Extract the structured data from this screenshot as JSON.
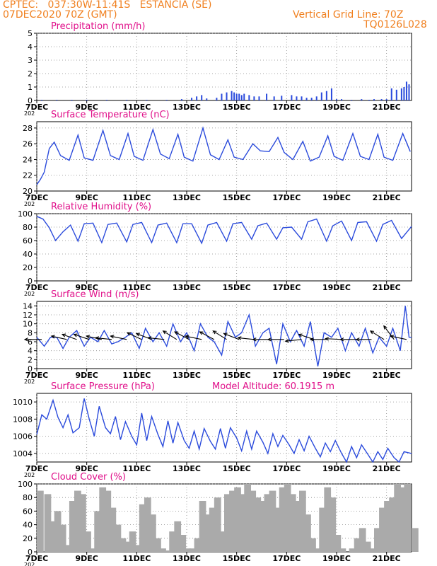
{
  "header": {
    "line1": "CPTEC:   037:30W-11:41S   ESTANCIA (SE)",
    "line2": "07DEC2020 70Z (GMT)",
    "grid_note": "Vertical Grid Line: 70Z",
    "code": "TQ0126L028",
    "model_altitude": "Model Altitude: 60.1915 m"
  },
  "colors": {
    "header": "#f08020",
    "title": "#e0108a",
    "series": "#2b4bdc",
    "cloud": "#aaaaaa",
    "grid": "#888888"
  },
  "x_axis": {
    "start": "7DEC",
    "end": "22DEC",
    "unit": "days",
    "tick_labels": [
      "7DEC",
      "9DEC",
      "11DEC",
      "13DEC",
      "15DEC",
      "17DEC",
      "19DEC",
      "21DEC"
    ],
    "tick_days": [
      7,
      9,
      11,
      13,
      15,
      17,
      19,
      21
    ],
    "year_hint": "202"
  },
  "chart_data": [
    {
      "id": "precip",
      "type": "bar",
      "title": "Precipitation (mm/h)",
      "ylim": [
        0,
        5
      ],
      "yticks": [
        0,
        1,
        2,
        3,
        4,
        5
      ],
      "day": [
        7.2,
        7.8,
        8.4,
        9.0,
        9.8,
        10.6,
        11.4,
        12.2,
        12.8,
        13.2,
        13.4,
        13.6,
        13.8,
        14.2,
        14.4,
        14.6,
        14.8,
        14.9,
        15.0,
        15.1,
        15.2,
        15.3,
        15.5,
        15.7,
        15.9,
        16.2,
        16.5,
        16.8,
        17.2,
        17.4,
        17.6,
        17.8,
        18.0,
        18.2,
        18.4,
        18.6,
        18.8,
        19.0,
        19.2,
        19.6,
        20.0,
        20.3,
        20.5,
        20.8,
        21.0,
        21.2,
        21.4,
        21.6,
        21.7,
        21.8,
        21.9
      ],
      "values": [
        0.05,
        0.05,
        0.05,
        0.05,
        0.05,
        0.05,
        0.05,
        0.05,
        0.1,
        0.2,
        0.3,
        0.4,
        0.15,
        0.2,
        0.5,
        0.6,
        0.7,
        0.6,
        0.5,
        0.5,
        0.4,
        0.5,
        0.4,
        0.3,
        0.3,
        0.5,
        0.3,
        0.35,
        0.4,
        0.3,
        0.3,
        0.2,
        0.2,
        0.3,
        0.6,
        0.7,
        0.9,
        0.1,
        0.1,
        0.05,
        0.1,
        0.05,
        0.1,
        0.1,
        0.1,
        0.9,
        0.8,
        0.9,
        1.0,
        1.4,
        1.2
      ]
    },
    {
      "id": "temp",
      "type": "line",
      "title": "Surface Temperature (nC)",
      "ylim": [
        20,
        28.8
      ],
      "yticks": [
        20,
        22,
        24,
        26,
        28
      ],
      "day": [
        7.0,
        7.15,
        7.3,
        7.5,
        7.7,
        7.95,
        8.3,
        8.65,
        8.9,
        9.25,
        9.65,
        9.95,
        10.3,
        10.65,
        10.9,
        11.25,
        11.65,
        11.95,
        12.3,
        12.65,
        12.9,
        13.25,
        13.65,
        13.95,
        14.3,
        14.65,
        14.9,
        15.25,
        15.65,
        15.95,
        16.3,
        16.65,
        16.9,
        17.25,
        17.65,
        17.95,
        18.3,
        18.65,
        18.9,
        19.25,
        19.65,
        19.95,
        20.3,
        20.65,
        20.9,
        21.25,
        21.65,
        21.95
      ],
      "values": [
        20.8,
        21.5,
        22.4,
        25.4,
        26.2,
        24.5,
        23.9,
        27.1,
        24.2,
        23.9,
        27.7,
        24.5,
        24.0,
        27.3,
        24.4,
        23.9,
        27.8,
        24.7,
        24.1,
        27.2,
        24.3,
        23.8,
        28.0,
        24.6,
        24.0,
        26.5,
        24.3,
        24.0,
        26.0,
        25.1,
        25.0,
        26.8,
        24.9,
        24.0,
        26.3,
        23.8,
        24.3,
        27.0,
        24.4,
        23.9,
        27.3,
        24.4,
        24.0,
        27.2,
        24.3,
        23.9,
        27.3,
        25.0
      ]
    },
    {
      "id": "rh",
      "type": "line",
      "title": "Relative Humidity (%)",
      "ylim": [
        0,
        100
      ],
      "yticks": [
        0,
        20,
        40,
        60,
        80,
        100
      ],
      "day": [
        7.0,
        7.25,
        7.5,
        7.75,
        8.05,
        8.35,
        8.65,
        8.9,
        9.25,
        9.6,
        9.85,
        10.2,
        10.6,
        10.85,
        11.2,
        11.6,
        11.85,
        12.2,
        12.6,
        12.85,
        13.2,
        13.6,
        13.85,
        14.2,
        14.6,
        14.85,
        15.2,
        15.6,
        15.85,
        16.2,
        16.6,
        16.85,
        17.2,
        17.6,
        17.85,
        18.2,
        18.6,
        18.85,
        19.2,
        19.6,
        19.85,
        20.2,
        20.6,
        20.85,
        21.2,
        21.6,
        22.0
      ],
      "values": [
        96,
        92,
        79,
        60,
        73,
        83,
        59,
        85,
        86,
        57,
        84,
        86,
        58,
        84,
        87,
        57,
        83,
        86,
        57,
        85,
        85,
        56,
        83,
        87,
        59,
        85,
        87,
        62,
        82,
        86,
        62,
        79,
        80,
        62,
        88,
        92,
        59,
        82,
        89,
        60,
        87,
        88,
        59,
        84,
        90,
        63,
        81
      ]
    },
    {
      "id": "wind",
      "type": "line",
      "title": "Surface Wind (m/s)",
      "ylim": [
        0,
        15
      ],
      "yticks": [
        0,
        2,
        4,
        6,
        8,
        10,
        12,
        14
      ],
      "day": [
        7.0,
        7.3,
        7.55,
        7.8,
        8.05,
        8.3,
        8.6,
        8.9,
        9.15,
        9.45,
        9.7,
        10.0,
        10.25,
        10.55,
        10.8,
        11.1,
        11.35,
        11.65,
        11.9,
        12.2,
        12.45,
        12.75,
        13.0,
        13.3,
        13.55,
        13.85,
        14.1,
        14.4,
        14.65,
        14.95,
        15.2,
        15.5,
        15.75,
        16.05,
        16.3,
        16.6,
        16.85,
        17.15,
        17.4,
        17.7,
        17.95,
        18.25,
        18.5,
        18.8,
        19.05,
        19.35,
        19.6,
        19.9,
        20.15,
        20.45,
        20.7,
        21.0,
        21.25,
        21.55,
        21.75,
        21.9,
        22.0
      ],
      "values": [
        7,
        5,
        7,
        7,
        4.5,
        7,
        8.5,
        5,
        7,
        6,
        8.5,
        5.5,
        6,
        7,
        8,
        4.5,
        9,
        6,
        8,
        5,
        10,
        6,
        8,
        4,
        10,
        7,
        6,
        3,
        10.5,
        7,
        8,
        12,
        5,
        8,
        9,
        1,
        10,
        6,
        8.5,
        5,
        10.5,
        0.5,
        8,
        7,
        9,
        4,
        8,
        5,
        9,
        3.5,
        7,
        5,
        9,
        4,
        14,
        7,
        7
      ],
      "arrows": [
        {
          "day": 7.2,
          "dx": -1.0,
          "dy": 0.0
        },
        {
          "day": 8.2,
          "dx": -0.9,
          "dy": 0.2
        },
        {
          "day": 8.6,
          "dx": -0.85,
          "dy": 0.3
        },
        {
          "day": 9.1,
          "dx": -0.9,
          "dy": 0.3
        },
        {
          "day": 9.6,
          "dx": -0.9,
          "dy": 0.2
        },
        {
          "day": 10.0,
          "dx": -0.95,
          "dy": 0.1
        },
        {
          "day": 10.6,
          "dx": -0.95,
          "dy": 0.2
        },
        {
          "day": 11.2,
          "dx": -0.85,
          "dy": 0.4
        },
        {
          "day": 11.6,
          "dx": -0.9,
          "dy": 0.35
        },
        {
          "day": 12.1,
          "dx": -0.95,
          "dy": 0.1
        },
        {
          "day": 12.6,
          "dx": -0.8,
          "dy": 0.5
        },
        {
          "day": 13.1,
          "dx": -0.85,
          "dy": 0.45
        },
        {
          "day": 13.6,
          "dx": -0.95,
          "dy": 0.2
        },
        {
          "day": 14.1,
          "dx": -0.85,
          "dy": 0.45
        },
        {
          "day": 14.6,
          "dx": -0.8,
          "dy": 0.5
        },
        {
          "day": 15.1,
          "dx": -0.9,
          "dy": 0.35
        },
        {
          "day": 15.7,
          "dx": -0.95,
          "dy": 0.1
        },
        {
          "day": 16.3,
          "dx": -0.95,
          "dy": 0.0
        },
        {
          "day": 16.9,
          "dx": -0.95,
          "dy": 0.0
        },
        {
          "day": 17.6,
          "dx": -0.95,
          "dy": -0.1
        },
        {
          "day": 18.1,
          "dx": -0.9,
          "dy": 0.3
        },
        {
          "day": 18.6,
          "dx": -0.95,
          "dy": 0.0
        },
        {
          "day": 19.2,
          "dx": -0.95,
          "dy": 0.05
        },
        {
          "day": 19.8,
          "dx": -0.95,
          "dy": 0.0
        },
        {
          "day": 20.4,
          "dx": -0.9,
          "dy": 0.0
        },
        {
          "day": 20.9,
          "dx": -0.8,
          "dy": 0.5
        },
        {
          "day": 21.3,
          "dx": -0.6,
          "dy": 0.8
        },
        {
          "day": 21.8,
          "dx": -0.95,
          "dy": 0.2
        }
      ]
    },
    {
      "id": "press",
      "type": "line",
      "title": "Surface Pressure (hPa)",
      "ylim": [
        1003,
        1011
      ],
      "yticks": [
        1004,
        1006,
        1008,
        1010
      ],
      "day": [
        7.0,
        7.2,
        7.4,
        7.65,
        7.85,
        8.05,
        8.25,
        8.45,
        8.7,
        8.9,
        9.1,
        9.3,
        9.5,
        9.75,
        9.95,
        10.15,
        10.35,
        10.55,
        10.8,
        11.0,
        11.2,
        11.4,
        11.6,
        11.85,
        12.05,
        12.25,
        12.45,
        12.65,
        12.9,
        13.1,
        13.3,
        13.5,
        13.7,
        13.95,
        14.15,
        14.35,
        14.55,
        14.75,
        15.0,
        15.2,
        15.4,
        15.6,
        15.8,
        16.05,
        16.25,
        16.45,
        16.65,
        16.85,
        17.1,
        17.3,
        17.5,
        17.7,
        17.9,
        18.15,
        18.35,
        18.55,
        18.75,
        18.95,
        19.2,
        19.4,
        19.6,
        19.8,
        20.0,
        20.25,
        20.45,
        20.65,
        20.85,
        21.05,
        21.3,
        21.5,
        21.7,
        22.0
      ],
      "values": [
        1006.2,
        1008.5,
        1008.0,
        1010.2,
        1008.2,
        1007.0,
        1008.5,
        1006.4,
        1007.0,
        1010.4,
        1008.0,
        1006.0,
        1009.5,
        1007.0,
        1006.3,
        1008.3,
        1005.6,
        1007.7,
        1006.0,
        1005.0,
        1008.7,
        1005.5,
        1008.3,
        1006.2,
        1004.8,
        1007.8,
        1005.2,
        1007.6,
        1005.5,
        1004.6,
        1006.6,
        1004.5,
        1006.9,
        1005.4,
        1004.5,
        1006.9,
        1004.6,
        1007.0,
        1005.8,
        1004.3,
        1006.6,
        1004.5,
        1006.6,
        1005.3,
        1004.0,
        1006.3,
        1004.8,
        1006.1,
        1005.0,
        1004.0,
        1005.6,
        1004.3,
        1006.0,
        1004.6,
        1003.6,
        1005.2,
        1004.2,
        1005.5,
        1004.0,
        1003.0,
        1004.8,
        1003.5,
        1005.0,
        1003.9,
        1002.6,
        1004.2,
        1003.3,
        1004.6,
        1003.5,
        1002.9,
        1004.2,
        1004.0
      ]
    },
    {
      "id": "cloud",
      "type": "bar",
      "title": "Cloud Cover (%)",
      "ylim": [
        0,
        100
      ],
      "yticks": [
        0,
        20,
        40,
        60,
        80,
        100
      ],
      "day": [
        7.0,
        7.3,
        7.5,
        7.7,
        7.9,
        8.1,
        8.3,
        8.5,
        8.7,
        8.9,
        9.1,
        9.3,
        9.5,
        9.7,
        9.9,
        10.1,
        10.3,
        10.5,
        10.7,
        10.9,
        11.1,
        11.3,
        11.5,
        11.7,
        11.9,
        12.1,
        12.3,
        12.5,
        12.7,
        12.9,
        13.1,
        13.3,
        13.5,
        13.7,
        13.9,
        14.1,
        14.3,
        14.5,
        14.7,
        14.9,
        15.1,
        15.3,
        15.5,
        15.7,
        15.9,
        16.1,
        16.3,
        16.5,
        16.7,
        16.9,
        17.1,
        17.3,
        17.5,
        17.7,
        17.9,
        18.1,
        18.3,
        18.5,
        18.7,
        18.9,
        19.1,
        19.3,
        19.5,
        19.7,
        19.9,
        20.1,
        20.3,
        20.5,
        20.7,
        20.9,
        21.1,
        21.3,
        21.5,
        21.7,
        22.0
      ],
      "values": [
        90,
        85,
        45,
        60,
        40,
        10,
        75,
        90,
        85,
        30,
        5,
        60,
        95,
        90,
        65,
        40,
        20,
        15,
        30,
        10,
        70,
        80,
        55,
        20,
        5,
        2,
        30,
        45,
        25,
        5,
        5,
        20,
        75,
        55,
        65,
        80,
        30,
        85,
        90,
        95,
        85,
        100,
        90,
        80,
        75,
        85,
        90,
        65,
        95,
        100,
        85,
        75,
        90,
        55,
        20,
        5,
        65,
        95,
        80,
        25,
        5,
        0,
        5,
        20,
        35,
        15,
        5,
        35,
        65,
        75,
        80,
        100,
        95,
        100,
        35
      ]
    }
  ],
  "titles_extra": {
    "wind_arrow_style": "black wind vectors"
  }
}
